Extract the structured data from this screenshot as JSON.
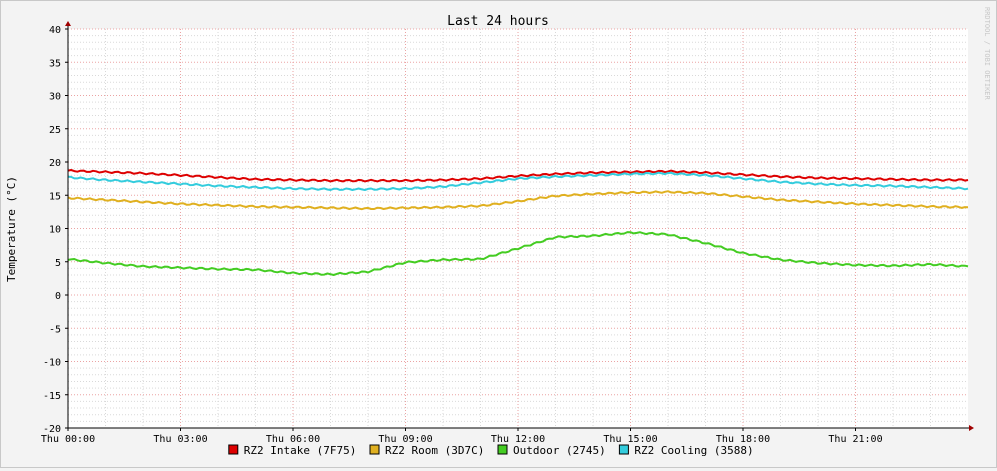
{
  "chart_data": {
    "type": "line",
    "title": "Last 24 hours",
    "ylabel": "Temperature (°C)",
    "xlabel": "",
    "watermark": "RRDTOOL / TOBI OETIKER",
    "ylim": [
      -20,
      40
    ],
    "yticks": [
      40,
      35,
      30,
      25,
      20,
      15,
      10,
      5,
      0,
      -5,
      -10,
      -15,
      -20
    ],
    "xlim": [
      0,
      24
    ],
    "xticks": [
      {
        "label": "Thu 00:00",
        "hour": 0
      },
      {
        "label": "Thu 03:00",
        "hour": 3
      },
      {
        "label": "Thu 06:00",
        "hour": 6
      },
      {
        "label": "Thu 09:00",
        "hour": 9
      },
      {
        "label": "Thu 12:00",
        "hour": 12
      },
      {
        "label": "Thu 15:00",
        "hour": 15
      },
      {
        "label": "Thu 18:00",
        "hour": 18
      },
      {
        "label": "Thu 21:00",
        "hour": 21
      }
    ],
    "x": [
      0,
      1,
      2,
      3,
      4,
      5,
      6,
      7,
      8,
      9,
      10,
      11,
      12,
      13,
      14,
      15,
      16,
      17,
      18,
      19,
      20,
      21,
      22,
      23,
      24
    ],
    "series": [
      {
        "name": "RZ2 Intake (7F75)",
        "color": "#dd0000",
        "values": [
          18.7,
          18.5,
          18.3,
          18.0,
          17.7,
          17.4,
          17.3,
          17.2,
          17.2,
          17.2,
          17.3,
          17.5,
          17.9,
          18.2,
          18.4,
          18.5,
          18.6,
          18.4,
          18.1,
          17.8,
          17.6,
          17.5,
          17.4,
          17.3,
          17.3
        ]
      },
      {
        "name": "RZ2 Room (3D7C)",
        "color": "#e0b020",
        "values": [
          14.6,
          14.3,
          14.0,
          13.7,
          13.5,
          13.3,
          13.2,
          13.1,
          13.0,
          13.1,
          13.2,
          13.4,
          14.1,
          14.9,
          15.2,
          15.4,
          15.5,
          15.3,
          14.8,
          14.3,
          14.0,
          13.7,
          13.5,
          13.3,
          13.2
        ]
      },
      {
        "name": "Outdoor (2745)",
        "color": "#44cc22",
        "values": [
          5.4,
          4.8,
          4.3,
          4.1,
          3.9,
          3.8,
          3.3,
          3.1,
          3.5,
          4.9,
          5.3,
          5.4,
          7.0,
          8.7,
          8.9,
          9.4,
          9.1,
          7.8,
          6.3,
          5.3,
          4.8,
          4.5,
          4.4,
          4.6,
          4.3
        ]
      },
      {
        "name": "RZ2 Cooling (3588)",
        "color": "#33ccdd",
        "values": [
          17.7,
          17.3,
          17.0,
          16.7,
          16.4,
          16.2,
          16.0,
          15.9,
          15.9,
          16.0,
          16.3,
          16.9,
          17.5,
          17.8,
          18.0,
          18.2,
          18.3,
          18.0,
          17.5,
          17.0,
          16.7,
          16.5,
          16.4,
          16.2,
          16.0
        ]
      }
    ],
    "legend_position": "bottom",
    "grid": true
  }
}
